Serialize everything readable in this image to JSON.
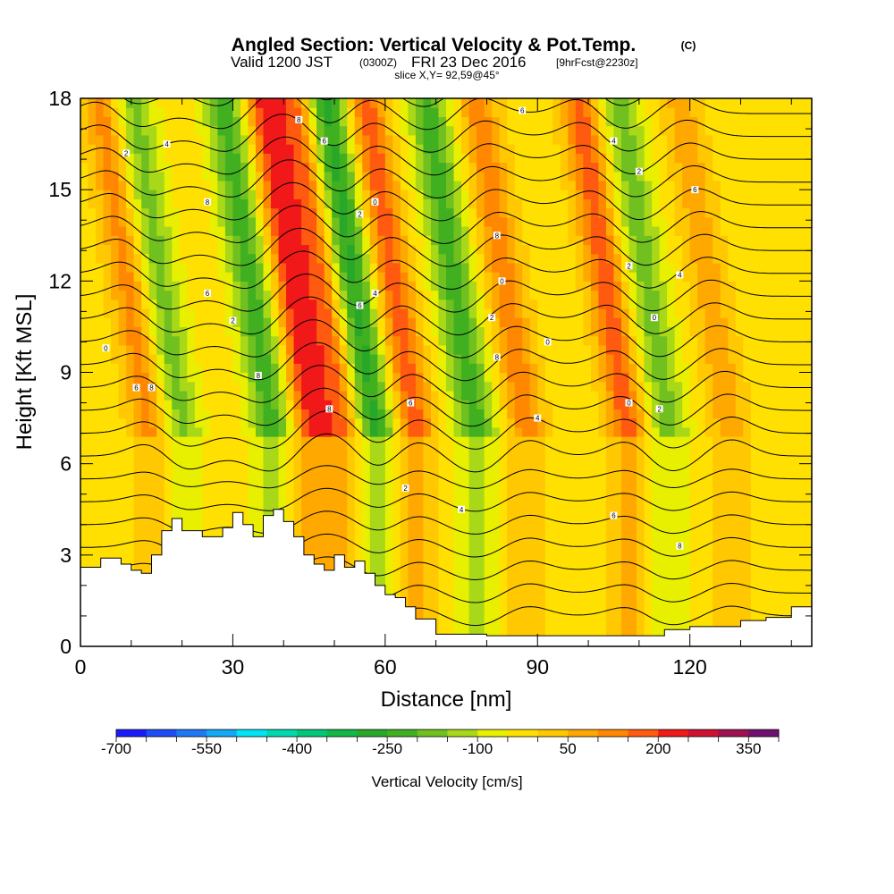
{
  "header": {
    "title": "Angled Section: Vertical Velocity & Pot.Temp.",
    "title_unit": "(C)",
    "valid_prefix": "Valid 1200 JST",
    "valid_utc": "(0300Z)",
    "valid_date": "FRI 23 Dec 2016",
    "forecast": "[9hrFcst@2230z]",
    "slice": "slice X,Y= 92,59@45°"
  },
  "chart_data": {
    "type": "heatmap",
    "xlabel": "Distance [nm]",
    "ylabel": "Height [Kft MSL]",
    "xlim": [
      0,
      144
    ],
    "ylim": [
      0,
      18
    ],
    "xticks": [
      0,
      30,
      60,
      90,
      120
    ],
    "yticks": [
      0,
      3,
      6,
      9,
      12,
      15,
      18
    ],
    "colorbar": {
      "label": "Vertical Velocity [cm/s]",
      "tick_labels": [
        "-700",
        "-550",
        "-400",
        "-250",
        "-100",
        "50",
        "200",
        "350"
      ],
      "levels": [
        -700,
        -650,
        -600,
        -550,
        -500,
        -450,
        -400,
        -350,
        -300,
        -250,
        -200,
        -150,
        -100,
        -50,
        0,
        50,
        100,
        150,
        200,
        250,
        300,
        350,
        400
      ],
      "colors": [
        "#1a1aff",
        "#1d4ef7",
        "#1f78f5",
        "#11a8f5",
        "#00e4f5",
        "#00d8b0",
        "#00c878",
        "#10b848",
        "#28a828",
        "#40b020",
        "#70c020",
        "#a8d818",
        "#e8f000",
        "#ffe000",
        "#ffc800",
        "#ffa800",
        "#ff8800",
        "#ff5a10",
        "#f01818",
        "#d01030",
        "#a01050",
        "#701070"
      ]
    },
    "updrafts": [
      {
        "x": 14,
        "center_cm_s": 150
      },
      {
        "x": 46,
        "center_cm_s": 250
      },
      {
        "x": 52,
        "center_cm_s": 200
      },
      {
        "x": 66,
        "center_cm_s": 200
      },
      {
        "x": 88,
        "center_cm_s": 150
      },
      {
        "x": 108,
        "center_cm_s": 200
      },
      {
        "x": 128,
        "center_cm_s": 100
      }
    ],
    "downdrafts": [
      {
        "x": 20,
        "center_cm_s": -150
      },
      {
        "x": 38,
        "center_cm_s": -200
      },
      {
        "x": 58,
        "center_cm_s": -250
      },
      {
        "x": 78,
        "center_cm_s": -200
      },
      {
        "x": 116,
        "center_cm_s": -150
      }
    ],
    "terrain_profile": {
      "x_nm": [
        0,
        4,
        8,
        10,
        12,
        14,
        16,
        18,
        20,
        24,
        28,
        30,
        32,
        34,
        36,
        38,
        40,
        42,
        44,
        46,
        48,
        50,
        52,
        54,
        56,
        58,
        60,
        62,
        64,
        66,
        70,
        80,
        90,
        100,
        105,
        110,
        115,
        120,
        125,
        130,
        135,
        140,
        144
      ],
      "height_kft": [
        2.6,
        2.9,
        2.7,
        2.5,
        2.4,
        3.0,
        3.8,
        4.2,
        3.8,
        3.6,
        3.9,
        4.4,
        4.0,
        3.6,
        4.3,
        4.5,
        4.1,
        3.6,
        3.0,
        2.7,
        2.5,
        3.0,
        2.6,
        2.8,
        2.4,
        2.0,
        1.7,
        1.6,
        1.3,
        0.9,
        0.4,
        0.35,
        0.35,
        0.35,
        0.35,
        0.35,
        0.55,
        0.65,
        0.65,
        0.85,
        0.95,
        1.3,
        1.3
      ]
    },
    "theta_labels": [
      {
        "x": 17,
        "y": 16.5,
        "value": "4"
      },
      {
        "x": 9,
        "y": 16.2,
        "value": "2"
      },
      {
        "x": 43,
        "y": 17.3,
        "value": "8"
      },
      {
        "x": 48,
        "y": 16.6,
        "value": "6"
      },
      {
        "x": 87,
        "y": 17.6,
        "value": "6"
      },
      {
        "x": 105,
        "y": 16.6,
        "value": "4"
      },
      {
        "x": 110,
        "y": 15.6,
        "value": "2"
      },
      {
        "x": 25,
        "y": 14.6,
        "value": "8"
      },
      {
        "x": 55,
        "y": 14.2,
        "value": "2"
      },
      {
        "x": 58,
        "y": 14.6,
        "value": "0"
      },
      {
        "x": 82,
        "y": 13.5,
        "value": "8"
      },
      {
        "x": 121,
        "y": 15.0,
        "value": "6"
      },
      {
        "x": 25,
        "y": 11.6,
        "value": "6"
      },
      {
        "x": 58,
        "y": 11.6,
        "value": "4"
      },
      {
        "x": 55,
        "y": 11.2,
        "value": "6"
      },
      {
        "x": 83,
        "y": 12.0,
        "value": "0"
      },
      {
        "x": 108,
        "y": 12.5,
        "value": "2"
      },
      {
        "x": 118,
        "y": 12.2,
        "value": "4"
      },
      {
        "x": 30,
        "y": 10.7,
        "value": "2"
      },
      {
        "x": 5,
        "y": 9.8,
        "value": "0"
      },
      {
        "x": 81,
        "y": 10.8,
        "value": "2"
      },
      {
        "x": 92,
        "y": 10.0,
        "value": "0"
      },
      {
        "x": 113,
        "y": 10.8,
        "value": "0"
      },
      {
        "x": 35,
        "y": 8.9,
        "value": "8"
      },
      {
        "x": 82,
        "y": 9.5,
        "value": "8"
      },
      {
        "x": 11,
        "y": 8.5,
        "value": "6"
      },
      {
        "x": 14,
        "y": 8.5,
        "value": "8"
      },
      {
        "x": 49,
        "y": 7.8,
        "value": "8"
      },
      {
        "x": 65,
        "y": 8.0,
        "value": "6"
      },
      {
        "x": 108,
        "y": 8.0,
        "value": "0"
      },
      {
        "x": 114,
        "y": 7.8,
        "value": "2"
      },
      {
        "x": 90,
        "y": 7.5,
        "value": "4"
      },
      {
        "x": 64,
        "y": 5.2,
        "value": "2"
      },
      {
        "x": 75,
        "y": 4.5,
        "value": "4"
      },
      {
        "x": 105,
        "y": 4.3,
        "value": "6"
      },
      {
        "x": 118,
        "y": 3.3,
        "value": "8"
      }
    ]
  }
}
